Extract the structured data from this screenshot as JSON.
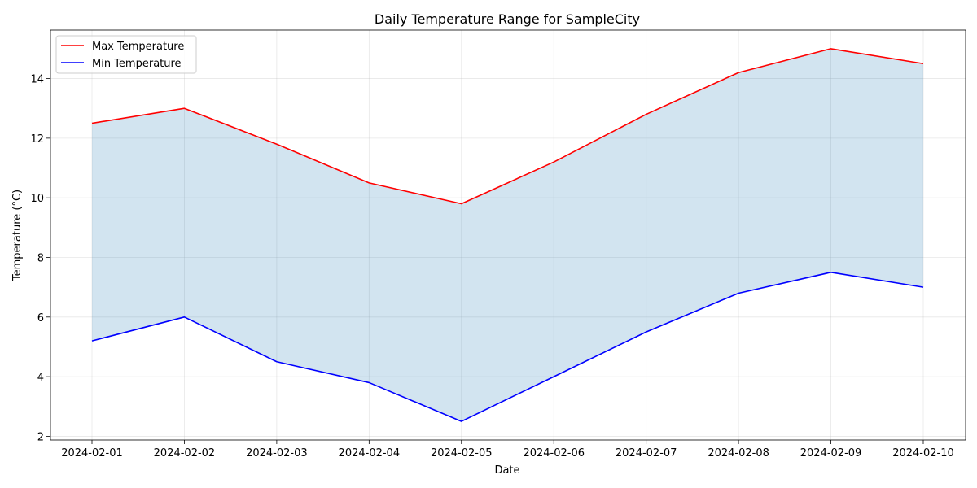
{
  "chart_data": {
    "type": "line",
    "title": "Daily Temperature Range for SampleCity",
    "xlabel": "Date",
    "ylabel": "Temperature (°C)",
    "categories": [
      "2024-02-01",
      "2024-02-02",
      "2024-02-03",
      "2024-02-04",
      "2024-02-05",
      "2024-02-06",
      "2024-02-07",
      "2024-02-08",
      "2024-02-09",
      "2024-02-10"
    ],
    "series": [
      {
        "name": "Max Temperature",
        "color": "#ff0000",
        "values": [
          12.5,
          13.0,
          11.8,
          10.5,
          9.8,
          11.2,
          12.8,
          14.2,
          15.0,
          14.5
        ]
      },
      {
        "name": "Min Temperature",
        "color": "#0000ff",
        "values": [
          5.2,
          6.0,
          4.5,
          3.8,
          2.5,
          4.0,
          5.5,
          6.8,
          7.5,
          7.0
        ]
      }
    ],
    "fill_between": {
      "color": "#1f77b4",
      "opacity": 0.2
    },
    "ylim": [
      1.875,
      15.625
    ],
    "yticks": [
      2,
      4,
      6,
      8,
      10,
      12,
      14
    ],
    "grid": true,
    "legend": "top-left"
  }
}
